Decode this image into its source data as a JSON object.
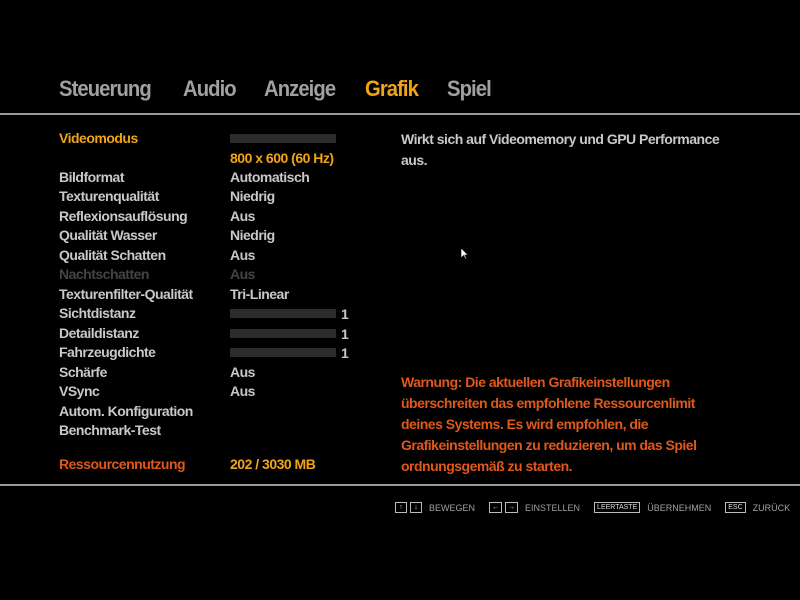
{
  "tabs": [
    {
      "label": "Steuerung",
      "active": false
    },
    {
      "label": "Audio",
      "active": false
    },
    {
      "label": "Anzeige",
      "active": false
    },
    {
      "label": "Grafik",
      "active": true
    },
    {
      "label": "Spiel",
      "active": false
    }
  ],
  "settings": {
    "videomodus": {
      "label": "Videomodus",
      "value": "800 x 600 (60 Hz)"
    },
    "bildformat": {
      "label": "Bildformat",
      "value": "Automatisch"
    },
    "texturenqualitaet": {
      "label": "Texturenqualität",
      "value": "Niedrig"
    },
    "reflexion": {
      "label": "Reflexionsauflösung",
      "value": "Aus"
    },
    "wasser": {
      "label": "Qualität Wasser",
      "value": "Niedrig"
    },
    "schatten": {
      "label": "Qualität Schatten",
      "value": "Aus"
    },
    "nachtschatten": {
      "label": "Nachtschatten",
      "value": "Aus",
      "disabled": true
    },
    "texturfilter": {
      "label": "Texturenfilter-Qualität",
      "value": "Tri-Linear"
    },
    "sichtdistanz": {
      "label": "Sichtdistanz",
      "value": "1",
      "fill_percent": 0
    },
    "detaildistanz": {
      "label": "Detaildistanz",
      "value": "1",
      "fill_percent": 0
    },
    "fahrzeugdichte": {
      "label": "Fahrzeugdichte",
      "value": "1",
      "fill_percent": 0
    },
    "schaerfe": {
      "label": "Schärfe",
      "value": "Aus"
    },
    "vsync": {
      "label": "VSync",
      "value": "Aus"
    },
    "autokonfig": {
      "label": "Autom. Konfiguration"
    },
    "benchmark": {
      "label": "Benchmark-Test"
    },
    "ressourcen": {
      "label": "Ressourcennutzung",
      "value": "202 / 3030 MB"
    }
  },
  "description": "Wirkt sich auf Videomemory und GPU Performance aus.",
  "warning": "Warnung: Die aktuellen Grafikeinstellungen überschreiten das empfohlene Ressourcenlimit deines Systems. Es wird empfohlen, die Grafikeinstellungen zu reduzieren, um das Spiel ordnungsgemäß zu starten.",
  "hints": [
    {
      "keys": [
        "↑",
        "↓"
      ],
      "label": "BEWEGEN"
    },
    {
      "keys": [
        "←",
        "→"
      ],
      "label": "EINSTELLEN"
    },
    {
      "keys": [
        "LEERTASTE"
      ],
      "label": "ÜBERNEHMEN"
    },
    {
      "keys": [
        "ESC"
      ],
      "label": "ZURÜCK"
    }
  ],
  "colors": {
    "accent": "#f0a418",
    "warning": "#e0581a",
    "text": "#c8c8c8",
    "disabled": "#444444"
  }
}
